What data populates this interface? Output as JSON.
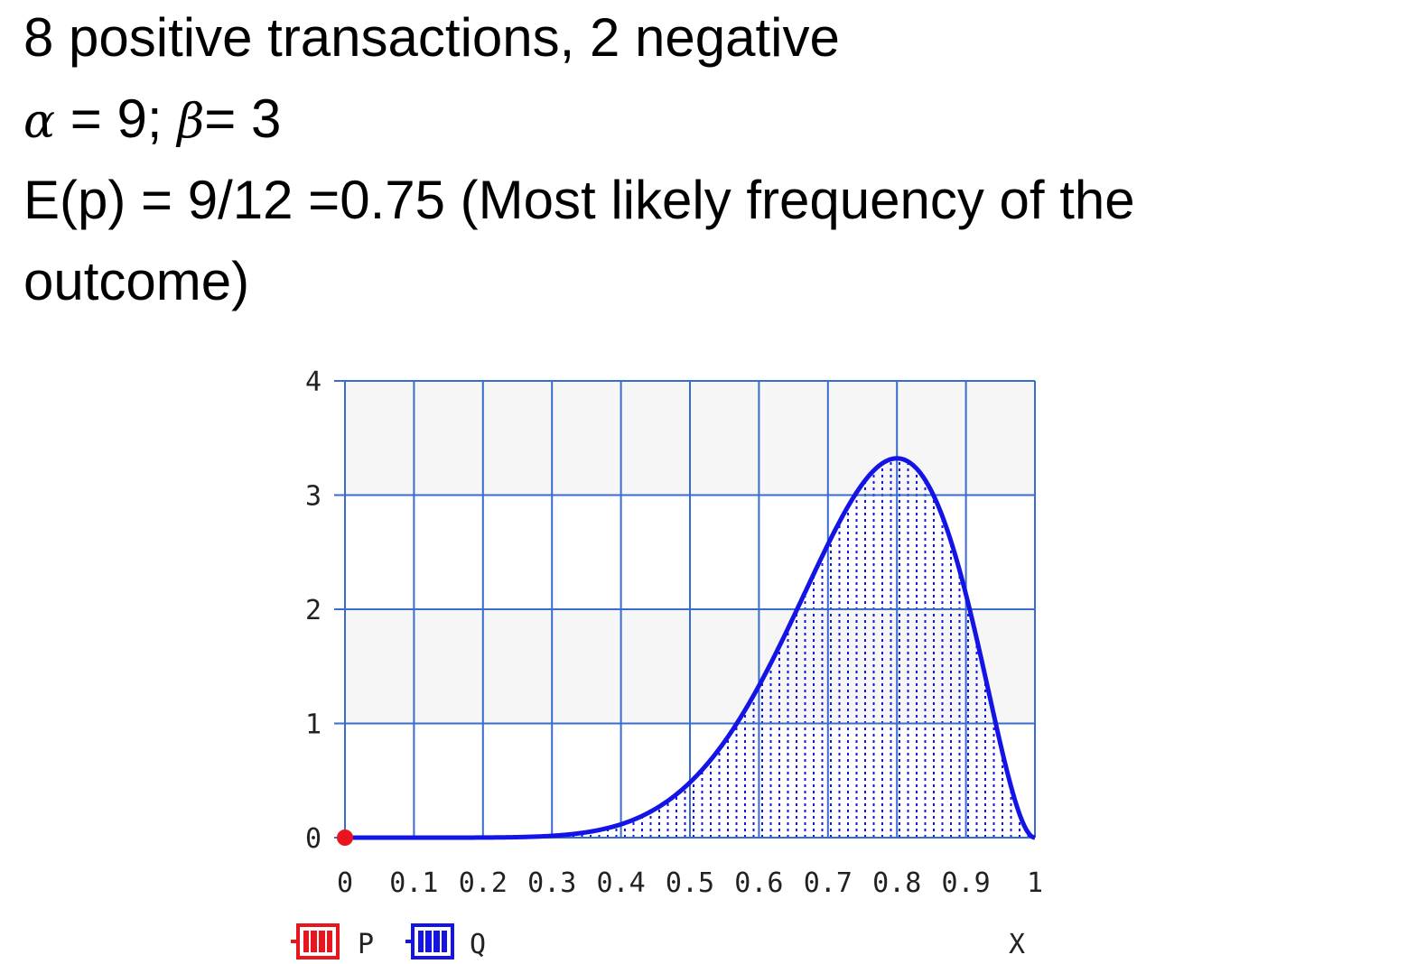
{
  "text": {
    "line1": "8 positive transactions, 2 negative",
    "alpha_symbol": "α",
    "alpha_value": " = 9; ",
    "beta_symbol": "β",
    "beta_value": "= 3",
    "line3": "E(p) = 9/12 =0.75 (Most likely frequency of the",
    "line4": "outcome)"
  },
  "chart_data": {
    "type": "area",
    "distribution": "beta",
    "params": {
      "alpha": 9,
      "beta": 3
    },
    "xlim": [
      0,
      1
    ],
    "ylim": [
      0,
      4
    ],
    "x_ticks": [
      "0",
      "0.1",
      "0.2",
      "0.3",
      "0.4",
      "0.5",
      "0.6",
      "0.7",
      "0.8",
      "0.9",
      "1"
    ],
    "y_ticks": [
      "0",
      "1",
      "2",
      "3",
      "4"
    ],
    "x_axis_label": "X",
    "series": [
      {
        "name": "P",
        "color": "#e8141e",
        "point": [
          0,
          0
        ]
      },
      {
        "name": "Q",
        "color": "#1414e6",
        "x": [
          0,
          0.1,
          0.2,
          0.3,
          0.4,
          0.5,
          0.6,
          0.7,
          0.8,
          0.9,
          1
        ],
        "y": [
          0,
          0.0,
          0.0014,
          0.024,
          0.1476,
          0.5371,
          1.3545,
          2.5438,
          3.3215,
          2.1308,
          0
        ]
      }
    ],
    "grid": true,
    "legend_position": "bottom-left",
    "colors": {
      "grid": "#3a6ccf",
      "band": "#f6f6f6",
      "curve": "#1414e6",
      "point": "#e8141e"
    }
  }
}
